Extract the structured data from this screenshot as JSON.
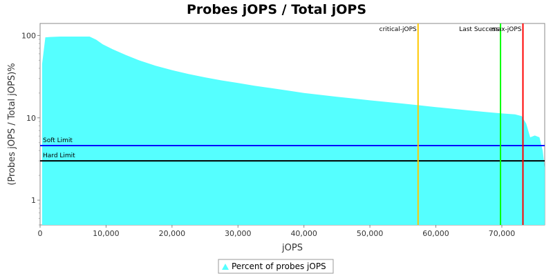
{
  "chart_data": {
    "type": "area",
    "title": "Probes jOPS / Total jOPS",
    "xlabel": "jOPS",
    "ylabel": "(Probes jOPS / Total jOPS)%",
    "xlim": [
      0,
      76500
    ],
    "ylim": [
      0.5,
      140
    ],
    "yscale": "log",
    "x_ticks": [
      0,
      10000,
      20000,
      30000,
      40000,
      50000,
      60000,
      70000
    ],
    "x_tick_labels": [
      "0",
      "10,000",
      "20,000",
      "30,000",
      "40,000",
      "50,000",
      "60,000",
      "70,000"
    ],
    "y_ticks": [
      1,
      10,
      100
    ],
    "y_tick_labels": [
      "1",
      "10",
      "100"
    ],
    "series": [
      {
        "name": "Percent of probes jOPS",
        "color": "#55ffff",
        "x": [
          300,
          800,
          1500,
          3000,
          5000,
          7500,
          8500,
          9500,
          11000,
          13000,
          15000,
          17500,
          20000,
          22500,
          25000,
          27500,
          30000,
          32500,
          35000,
          37500,
          40000,
          42500,
          45000,
          47500,
          50000,
          52500,
          55000,
          57500,
          60000,
          62500,
          65000,
          67500,
          70000,
          72000,
          73000,
          73700,
          74300,
          75000,
          75700,
          76200,
          76500
        ],
        "values": [
          45,
          95,
          96,
          97,
          97,
          97,
          89,
          78,
          68,
          58,
          50,
          43,
          38,
          34,
          31,
          28.5,
          26.5,
          24.5,
          23,
          21.5,
          20,
          19,
          18,
          17.2,
          16.3,
          15.6,
          14.9,
          14.2,
          13.5,
          12.9,
          12.3,
          11.8,
          11.3,
          11.0,
          10.5,
          8.5,
          5.8,
          6.1,
          5.8,
          4.0,
          2.5
        ]
      }
    ],
    "reference_lines": {
      "horizontal": [
        {
          "label": "Soft Limit",
          "y": 4.6,
          "color": "#0000ff"
        },
        {
          "label": "Hard Limit",
          "y": 3.0,
          "color": "#000000"
        }
      ],
      "vertical": [
        {
          "label": "critical-jOPS",
          "x": 57300,
          "color": "#ffc800"
        },
        {
          "label": "Last Success",
          "x": 69800,
          "color": "#00ff00"
        },
        {
          "label": "max-jOPS",
          "x": 73200,
          "color": "#ff0000"
        }
      ]
    },
    "legend": "bottom",
    "grid": false
  }
}
